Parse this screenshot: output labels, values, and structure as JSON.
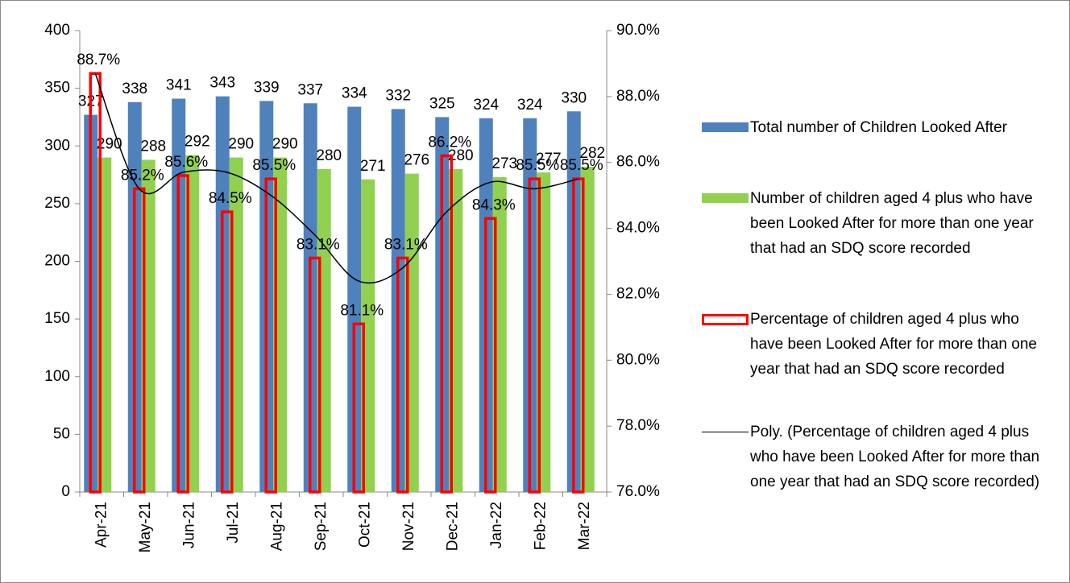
{
  "chart_data": {
    "type": "bar",
    "categories": [
      "Apr-21",
      "May-21",
      "Jun-21",
      "Jul-21",
      "Aug-21",
      "Sep-21",
      "Oct-21",
      "Nov-21",
      "Dec-21",
      "Jan-22",
      "Feb-22",
      "Mar-22"
    ],
    "series": [
      {
        "name": "Total number of Children Looked After",
        "color": "#4f81bd",
        "type": "bar",
        "values": [
          327,
          338,
          341,
          343,
          339,
          337,
          334,
          332,
          325,
          324,
          324,
          330
        ]
      },
      {
        "name": "Number of children aged 4 plus who have been Looked After for more than one year that had an SDQ score recorded",
        "color": "#92d050",
        "type": "bar",
        "values": [
          290,
          288,
          292,
          290,
          290,
          280,
          271,
          276,
          280,
          273,
          277,
          282
        ]
      },
      {
        "name": "Percentage of children aged 4 plus who have been Looked After for more than one year that had an SDQ score recorded",
        "color": "#ff0000",
        "type": "outline-bar",
        "axis": "y2",
        "values": [
          88.7,
          85.2,
          85.6,
          84.5,
          85.5,
          83.1,
          81.1,
          83.1,
          86.2,
          84.3,
          85.5,
          85.5
        ],
        "value_labels": [
          "88.7%",
          "85.2%",
          "85.6%",
          "84.5%",
          "85.5%",
          "83.1%",
          "81.1%",
          "83.1%",
          "86.2%",
          "84.3%",
          "85.5%",
          "85.5%"
        ]
      },
      {
        "name": "Poly. (Percentage of children aged 4 plus who have been Looked After for more than one year that had an SDQ score recorded)",
        "color": "#000000",
        "type": "line",
        "axis": "y2",
        "values": [
          88.7,
          85.2,
          85.7,
          85.7,
          85.0,
          83.8,
          82.4,
          82.8,
          84.5,
          85.4,
          85.2,
          85.5
        ]
      }
    ],
    "ylim": [
      0,
      400
    ],
    "yticks": [
      0,
      50,
      100,
      150,
      200,
      250,
      300,
      350,
      400
    ],
    "y2lim": [
      76,
      90
    ],
    "y2ticks": [
      {
        "value": 76,
        "label": "76.0%"
      },
      {
        "value": 78,
        "label": "78.0%"
      },
      {
        "value": 80,
        "label": "80.0%"
      },
      {
        "value": 82,
        "label": "82.0%"
      },
      {
        "value": 84,
        "label": "84.0%"
      },
      {
        "value": 86,
        "label": "86.0%"
      },
      {
        "value": 88,
        "label": "88.0%"
      },
      {
        "value": 90,
        "label": "90.0%"
      }
    ],
    "grid": false,
    "legend": "right"
  }
}
